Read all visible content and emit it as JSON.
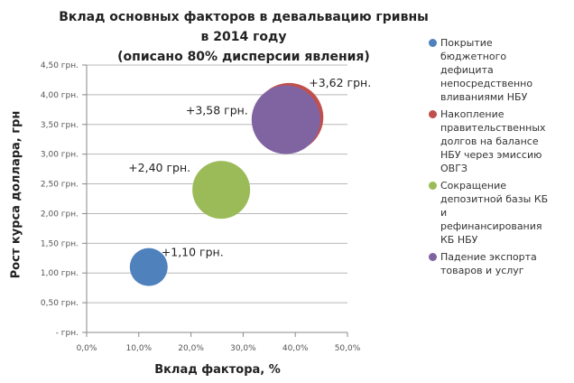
{
  "chart_data": {
    "type": "scatter",
    "subtype": "bubble",
    "title": "Вклад основных факторов в девальвацию гривны в 2014 году",
    "subtitle": "(описано 80% дисперсии явления)",
    "xlabel": "Вклад фактора, %",
    "ylabel": "Рост курса доллара, грн",
    "xlim": [
      0,
      50
    ],
    "ylim": [
      0,
      4.5
    ],
    "x_ticks": [
      "0,0%",
      "10,0%",
      "20,0%",
      "30,0%",
      "40,0%",
      "50,0%"
    ],
    "y_ticks": [
      "-    грн.",
      "0,50 грн.",
      "1,00 грн.",
      "1,50 грн.",
      "2,00 грн.",
      "2,50 грн.",
      "3,00 грн.",
      "3,50 грн.",
      "4,00 грн.",
      "4,50 грн."
    ],
    "grid": {
      "horizontal": true,
      "vertical": false
    },
    "legend_position": "right",
    "series": [
      {
        "name": "Покрытие бюджетного дефицита непосредственно вливаниями НБУ",
        "color": "#4f81bd",
        "x": 11.9,
        "y": 1.1,
        "size": 21,
        "label": "+1,10 грн."
      },
      {
        "name": "Накопление правительственных долгов на балансе НБУ через эмиссию ОВГЗ",
        "color": "#c0504d",
        "x": 38.8,
        "y": 3.62,
        "size": 38,
        "label": "+3,62 грн."
      },
      {
        "name": "Сокращение депозитной базы КБ и рефинансирования КБ НБУ",
        "color": "#9bbb59",
        "x": 25.8,
        "y": 2.4,
        "size": 32,
        "label": "+2,40 грн."
      },
      {
        "name": "Падение экспорта товаров и услуг",
        "color": "#8064a2",
        "x": 38.2,
        "y": 3.58,
        "size": 38,
        "label": "+3,58 грн."
      }
    ]
  },
  "legend": [
    {
      "lines": [
        "Покрытие",
        "бюджетного",
        "дефицита",
        "непосредственно",
        "вливаниями НБУ"
      ],
      "color": "#4f81bd"
    },
    {
      "lines": [
        "Накопление",
        "правительственных",
        "долгов на балансе",
        "НБУ через эмиссию",
        "ОВГЗ"
      ],
      "color": "#c0504d"
    },
    {
      "lines": [
        "Сокращение",
        "депозитной базы КБ",
        "и",
        "рефинансирования",
        "КБ НБУ"
      ],
      "color": "#9bbb59"
    },
    {
      "lines": [
        "Падение экспорта",
        "товаров и услуг"
      ],
      "color": "#8064a2"
    }
  ]
}
